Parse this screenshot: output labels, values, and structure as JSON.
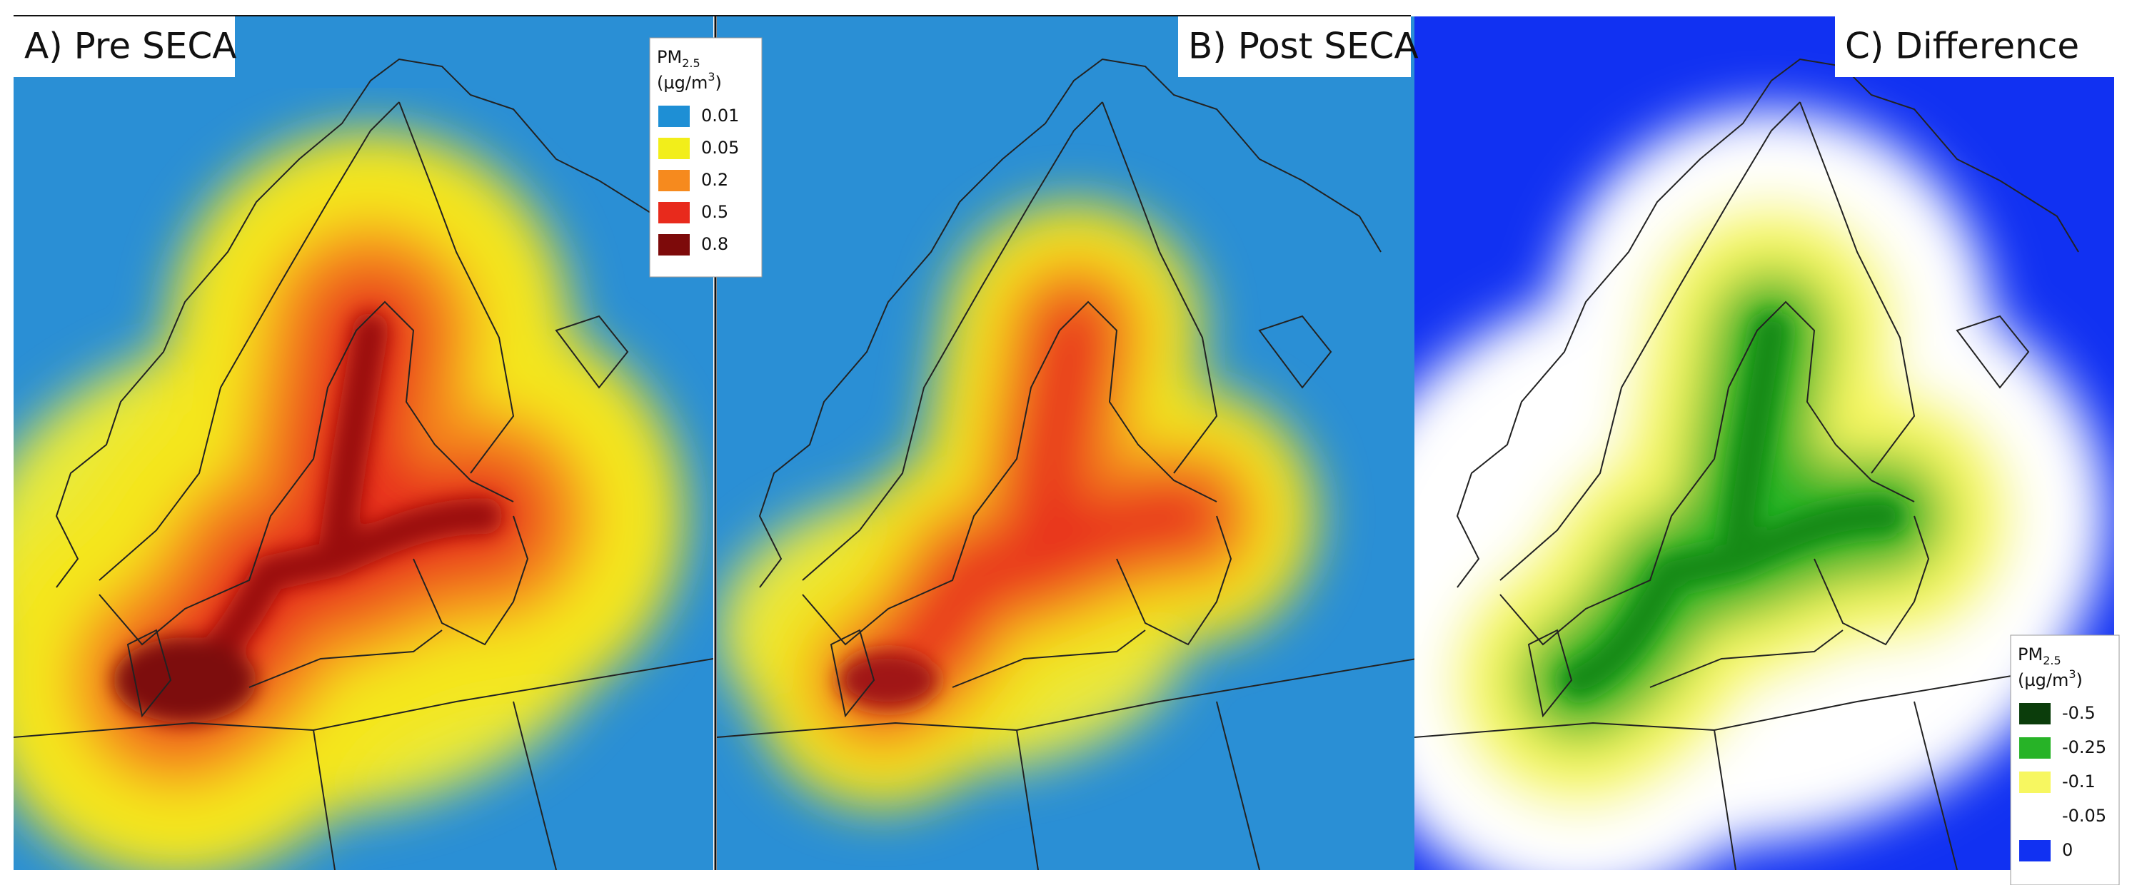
{
  "panels": [
    {
      "label": "A) Pre SECA"
    },
    {
      "label": "B) Post SECA"
    },
    {
      "label": "C) Difference"
    }
  ],
  "legends": [
    {
      "title": "PM",
      "title_sub": "2.5",
      "unit": "(µg/m",
      "unit_sup": "3",
      "unit_end": ")",
      "items": [
        {
          "value": 0.01,
          "color": "#1e8fd5"
        },
        {
          "value": 0.05,
          "color": "#f2ee1a"
        },
        {
          "value": 0.2,
          "color": "#f68a1e"
        },
        {
          "value": 0.5,
          "color": "#e82a1c"
        },
        {
          "value": 0.8,
          "color": "#7d0a0a"
        }
      ]
    },
    {
      "title": "PM",
      "title_sub": "2.5",
      "unit": "(µg/m",
      "unit_sup": "3",
      "unit_end": ")",
      "items": [
        {
          "value": -0.5,
          "color": "#0b3d0b"
        },
        {
          "value": -0.25,
          "color": "#27b327"
        },
        {
          "value": -0.1,
          "color": "#f7f760"
        },
        {
          "value": -0.05,
          "color": "#ffffff"
        },
        {
          "value": 0,
          "color": "#1131f2"
        }
      ]
    }
  ]
}
